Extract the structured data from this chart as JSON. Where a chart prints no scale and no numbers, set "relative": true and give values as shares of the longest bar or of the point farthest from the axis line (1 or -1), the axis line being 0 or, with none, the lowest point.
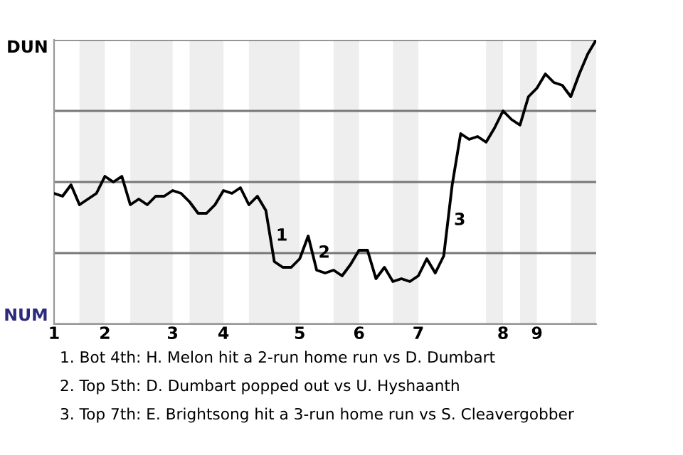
{
  "chart_data": {
    "type": "line",
    "relative": true,
    "categories": [
      "1",
      null,
      null,
      null,
      null,
      null,
      "2",
      null,
      null,
      null,
      null,
      null,
      null,
      null,
      "3",
      null,
      null,
      null,
      null,
      null,
      "4",
      null,
      null,
      null,
      null,
      null,
      null,
      null,
      null,
      "5",
      null,
      null,
      null,
      null,
      null,
      null,
      "6",
      null,
      null,
      null,
      null,
      null,
      null,
      "7",
      null,
      null,
      null,
      null,
      null,
      null,
      null,
      null,
      null,
      "8",
      null,
      null,
      null,
      "9",
      null,
      null,
      null,
      null,
      null,
      null,
      null
    ],
    "tick_labels": "x",
    "grid": "y",
    "marker": "none",
    "line_style": "solid",
    "series": [
      {
        "color": "#000000",
        "values": [
          0.46,
          0.45,
          0.49,
          0.42,
          0.44,
          0.46,
          0.52,
          0.5,
          0.52,
          0.42,
          0.44,
          0.42,
          0.45,
          0.45,
          0.47,
          0.46,
          0.43,
          0.39,
          0.39,
          0.42,
          0.47,
          0.46,
          0.48,
          0.42,
          0.45,
          0.4,
          0.22,
          0.2,
          0.2,
          0.23,
          0.31,
          0.19,
          0.18,
          0.19,
          0.17,
          0.21,
          0.26,
          0.26,
          0.16,
          0.2,
          0.15,
          0.16,
          0.15,
          0.17,
          0.23,
          0.18,
          0.24,
          0.49,
          0.67,
          0.65,
          0.66,
          0.64,
          0.69,
          0.75,
          0.72,
          0.7,
          0.8,
          0.83,
          0.88,
          0.85,
          0.84,
          0.8,
          0.88,
          0.95,
          1.0
        ]
      }
    ],
    "annotations": [
      "DUN",
      "NUM",
      "1",
      "2",
      "3",
      "1. Bot 4th: H. Melon hit a 2-run home run vs D. Dumbart",
      "2. Top 5th: D. Dumbart popped out vs U. Hyshaanth",
      "3. Top 7th: E. Brightsong hit a 3-run home run vs S. Cleavergobber"
    ]
  }
}
